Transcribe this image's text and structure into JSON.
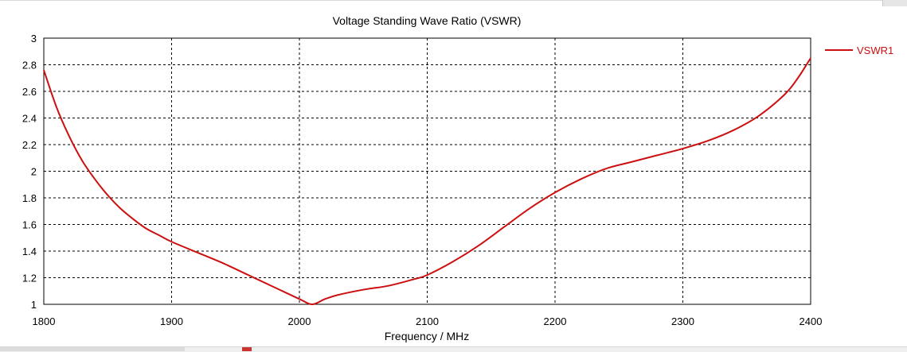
{
  "window": {
    "title": "Voltage Standing Wave Ratio (VSWR)"
  },
  "colors": {
    "series": "#cc1010",
    "grid": "#000000",
    "background": "#ffffff"
  },
  "chart_data": {
    "type": "line",
    "title": "Voltage Standing Wave Ratio (VSWR)",
    "xlabel": "Frequency / MHz",
    "ylabel": "",
    "xlim": [
      1800,
      2400
    ],
    "ylim": [
      1,
      3
    ],
    "x_ticks": [
      "1800",
      "1900",
      "2000",
      "2100",
      "2200",
      "2300",
      "2400"
    ],
    "y_ticks": [
      "1",
      "1.2",
      "1.4",
      "1.6",
      "1.8",
      "2",
      "2.2",
      "2.4",
      "2.6",
      "2.8",
      "3"
    ],
    "grid": true,
    "grid_style": "dashed",
    "legend_position": "right",
    "series": [
      {
        "name": "VSWR1",
        "color": "#cc1010",
        "x": [
          1800,
          1810,
          1820,
          1830,
          1840,
          1850,
          1860,
          1870,
          1880,
          1890,
          1900,
          1920,
          1940,
          1960,
          1980,
          2000,
          2010,
          2020,
          2030,
          2050,
          2070,
          2090,
          2100,
          2120,
          2140,
          2160,
          2180,
          2200,
          2220,
          2240,
          2260,
          2280,
          2300,
          2320,
          2340,
          2360,
          2380,
          2390,
          2400
        ],
        "y": [
          2.76,
          2.48,
          2.26,
          2.08,
          1.94,
          1.82,
          1.72,
          1.64,
          1.57,
          1.52,
          1.47,
          1.39,
          1.31,
          1.22,
          1.13,
          1.04,
          1.0,
          1.04,
          1.07,
          1.11,
          1.14,
          1.19,
          1.22,
          1.32,
          1.44,
          1.58,
          1.72,
          1.84,
          1.94,
          2.02,
          2.07,
          2.12,
          2.17,
          2.23,
          2.31,
          2.42,
          2.58,
          2.7,
          2.85
        ]
      }
    ]
  }
}
